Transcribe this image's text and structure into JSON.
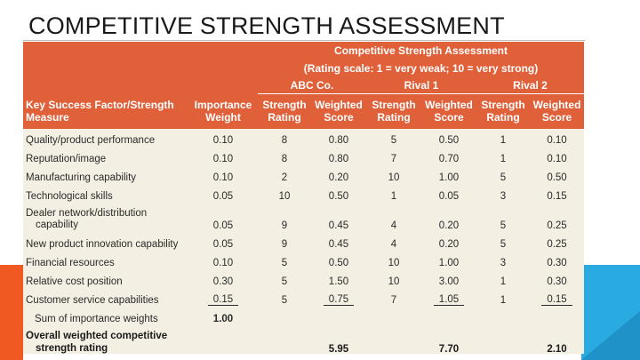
{
  "slide": {
    "title": "COMPETITIVE STRENGTH ASSESSMENT"
  },
  "table": {
    "heading": "Competitive Strength Assessment",
    "scale_note": "(Rating scale: 1 = very weak; 10 = very strong)",
    "groups": [
      "ABC Co.",
      "Rival 1",
      "Rival 2"
    ],
    "columns": {
      "factor_line1": "Key Success Factor/Strength",
      "factor_line2": "Measure",
      "importance_line1": "Importance",
      "importance_line2": "Weight",
      "strength_line1": "Strength",
      "strength_line2": "Rating",
      "weighted_line1": "Weighted",
      "weighted_line2": "Score"
    },
    "rows": [
      {
        "factor": "Quality/product performance",
        "weight": "0.10",
        "abc_rating": "8",
        "abc_score": "0.80",
        "r1_rating": "5",
        "r1_score": "0.50",
        "r2_rating": "1",
        "r2_score": "0.10"
      },
      {
        "factor": "Reputation/image",
        "weight": "0.10",
        "abc_rating": "8",
        "abc_score": "0.80",
        "r1_rating": "7",
        "r1_score": "0.70",
        "r2_rating": "1",
        "r2_score": "0.10"
      },
      {
        "factor": "Manufacturing capability",
        "weight": "0.10",
        "abc_rating": "2",
        "abc_score": "0.20",
        "r1_rating": "10",
        "r1_score": "1.00",
        "r2_rating": "5",
        "r2_score": "0.50"
      },
      {
        "factor": "Technological skills",
        "weight": "0.05",
        "abc_rating": "10",
        "abc_score": "0.50",
        "r1_rating": "1",
        "r1_score": "0.05",
        "r2_rating": "3",
        "r2_score": "0.15"
      },
      {
        "factor_line1": "Dealer network/distribution",
        "factor_line2": "capability",
        "weight": "0.05",
        "abc_rating": "9",
        "abc_score": "0.45",
        "r1_rating": "4",
        "r1_score": "0.20",
        "r2_rating": "5",
        "r2_score": "0.25"
      },
      {
        "factor": "New product innovation capability",
        "weight": "0.05",
        "abc_rating": "9",
        "abc_score": "0.45",
        "r1_rating": "4",
        "r1_score": "0.20",
        "r2_rating": "5",
        "r2_score": "0.25"
      },
      {
        "factor": "Financial resources",
        "weight": "0.10",
        "abc_rating": "5",
        "abc_score": "0.50",
        "r1_rating": "10",
        "r1_score": "1.00",
        "r2_rating": "3",
        "r2_score": "0.30"
      },
      {
        "factor": "Relative cost position",
        "weight": "0.30",
        "abc_rating": "5",
        "abc_score": "1.50",
        "r1_rating": "10",
        "r1_score": "3.00",
        "r2_rating": "1",
        "r2_score": "0.30"
      },
      {
        "factor": "Customer service capabilities",
        "weight": "0.15",
        "abc_rating": "5",
        "abc_score": "0.75",
        "r1_rating": "7",
        "r1_score": "1.05",
        "r2_rating": "1",
        "r2_score": "0.15"
      }
    ],
    "sum_label": "Sum of importance weights",
    "sum_value": "1.00",
    "total_label_line1": "Overall weighted competitive",
    "total_label_line2": "strength rating",
    "total_abc": "5.95",
    "total_r1": "7.70",
    "total_r2": "2.10"
  },
  "colors": {
    "header_orange": "#e0603a",
    "table_bg": "#f4efe3",
    "accent_orange": "#f05a22",
    "accent_blue": "#29abe2"
  }
}
